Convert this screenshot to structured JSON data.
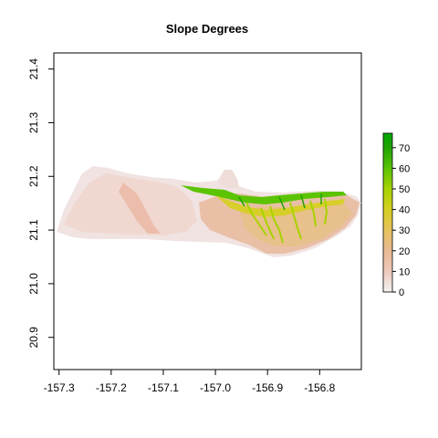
{
  "chart_data": {
    "type": "heatmap",
    "title": "Slope Degrees",
    "xlabel": "",
    "ylabel": "",
    "xlim": [
      -157.31,
      -156.72
    ],
    "ylim": [
      20.84,
      21.43
    ],
    "x_ticks": [
      -157.3,
      -157.2,
      -157.1,
      -157.0,
      -156.9,
      -156.8
    ],
    "x_tick_labels": [
      "-157.3",
      "-157.2",
      "-157.1",
      "-157.0",
      "-156.9",
      "-156.8"
    ],
    "y_ticks": [
      20.9,
      21.0,
      21.1,
      21.2,
      21.3,
      21.4
    ],
    "y_tick_labels": [
      "20.9",
      "21.0",
      "21.1",
      "21.2",
      "21.3",
      "21.4"
    ],
    "legend": {
      "position": "right",
      "min": 0,
      "max": 77,
      "ticks": [
        0,
        10,
        20,
        30,
        40,
        50,
        60,
        70
      ],
      "tick_labels": [
        "0",
        "10",
        "20",
        "30",
        "40",
        "50",
        "60",
        "70"
      ],
      "color_stops": [
        {
          "value": 0,
          "color": "#f2f2f2"
        },
        {
          "value": 10,
          "color": "#eec9bb"
        },
        {
          "value": 20,
          "color": "#e9b993"
        },
        {
          "value": 30,
          "color": "#e7c25c"
        },
        {
          "value": 40,
          "color": "#d6cf1f"
        },
        {
          "value": 50,
          "color": "#a7d300"
        },
        {
          "value": 60,
          "color": "#5bc300"
        },
        {
          "value": 70,
          "color": "#1fa300"
        },
        {
          "value": 77,
          "color": "#00a600"
        }
      ]
    },
    "grid": false
  }
}
